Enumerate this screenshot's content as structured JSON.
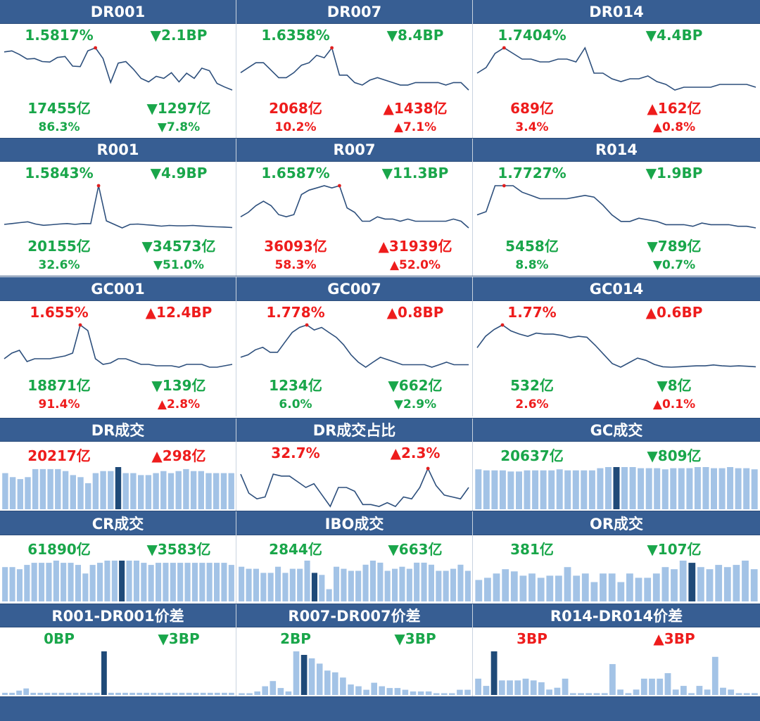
{
  "colors": {
    "header": "#375e93",
    "up": "#ee1c1c",
    "down": "#19a64a",
    "line": "#2d4f7c",
    "bar": "#a3c3e6",
    "bar_highlight": "#1f4a78",
    "dot": "#e02020"
  },
  "panels": [
    {
      "title": "DR001",
      "type": "line",
      "rate": "1.5817%",
      "rate_dir": "down",
      "rate_chg": "2.1BP",
      "vol": "17455亿",
      "vol_dir": "down",
      "vol_chg": "1297亿",
      "pct": "86.3%",
      "pct_dir": "down",
      "pct_chg": "7.8%",
      "series": [
        1.625,
        1.627,
        1.62,
        1.611,
        1.612,
        1.606,
        1.605,
        1.614,
        1.616,
        1.597,
        1.596,
        1.627,
        1.633,
        1.612,
        1.565,
        1.603,
        1.606,
        1.591,
        1.573,
        1.566,
        1.577,
        1.573,
        1.584,
        1.566,
        1.583,
        1.573,
        1.593,
        1.588,
        1.563,
        1.556,
        1.55
      ],
      "peak": 12
    },
    {
      "title": "DR007",
      "type": "line",
      "rate": "1.6358%",
      "rate_dir": "down",
      "rate_chg": "8.4BP",
      "vol": "2068亿",
      "vol_dir": "up",
      "vol_chg": "1438亿",
      "pct": "10.2%",
      "pct_dir": "up",
      "pct_chg": "7.1%",
      "series": [
        1.66,
        1.68,
        1.7,
        1.7,
        1.67,
        1.64,
        1.64,
        1.66,
        1.69,
        1.7,
        1.73,
        1.72,
        1.76,
        1.65,
        1.65,
        1.62,
        1.61,
        1.63,
        1.64,
        1.63,
        1.62,
        1.61,
        1.61,
        1.62,
        1.62,
        1.62,
        1.62,
        1.61,
        1.62,
        1.62,
        1.59
      ],
      "peak": 12
    },
    {
      "title": "DR014",
      "type": "line",
      "rate": "1.7404%",
      "rate_dir": "down",
      "rate_chg": "4.4BP",
      "vol": "689亿",
      "vol_dir": "up",
      "vol_chg": "162亿",
      "pct": "3.4%",
      "pct_dir": "up",
      "pct_chg": "0.8%",
      "series": [
        1.8,
        1.82,
        1.87,
        1.89,
        1.87,
        1.85,
        1.85,
        1.84,
        1.84,
        1.85,
        1.85,
        1.84,
        1.89,
        1.8,
        1.8,
        1.78,
        1.77,
        1.78,
        1.78,
        1.79,
        1.77,
        1.76,
        1.74,
        1.75,
        1.75,
        1.75,
        1.75,
        1.76,
        1.76,
        1.76,
        1.76,
        1.75
      ],
      "peak": 3
    },
    {
      "title": "R001",
      "type": "line",
      "rate": "1.5843%",
      "rate_dir": "down",
      "rate_chg": "4.9BP",
      "vol": "20155亿",
      "vol_dir": "down",
      "vol_chg": "34573亿",
      "pct": "32.6%",
      "pct_dir": "down",
      "pct_chg": "51.0%",
      "series": [
        1.58,
        1.585,
        1.59,
        1.595,
        1.582,
        1.575,
        1.578,
        1.582,
        1.585,
        1.58,
        1.585,
        1.584,
        1.8,
        1.6,
        1.58,
        1.56,
        1.58,
        1.582,
        1.578,
        1.575,
        1.57,
        1.574,
        1.572,
        1.572,
        1.574,
        1.571,
        1.568,
        1.566,
        1.565,
        1.562
      ],
      "peak": 12
    },
    {
      "title": "R007",
      "type": "line",
      "rate": "1.6587%",
      "rate_dir": "down",
      "rate_chg": "11.3BP",
      "vol": "36093亿",
      "vol_dir": "up",
      "vol_chg": "31939亿",
      "pct": "58.3%",
      "pct_dir": "up",
      "pct_chg": "52.0%",
      "series": [
        1.66,
        1.68,
        1.71,
        1.73,
        1.71,
        1.67,
        1.66,
        1.67,
        1.76,
        1.78,
        1.79,
        1.8,
        1.79,
        1.8,
        1.7,
        1.68,
        1.64,
        1.64,
        1.66,
        1.65,
        1.65,
        1.64,
        1.65,
        1.64,
        1.64,
        1.64,
        1.64,
        1.64,
        1.65,
        1.64,
        1.61
      ],
      "peak": 13
    },
    {
      "title": "R014",
      "type": "line",
      "rate": "1.7727%",
      "rate_dir": "down",
      "rate_chg": "1.9BP",
      "vol": "5458亿",
      "vol_dir": "down",
      "vol_chg": "789亿",
      "pct": "8.8%",
      "pct_dir": "down",
      "pct_chg": "0.7%",
      "series": [
        1.8,
        1.81,
        1.89,
        1.89,
        1.89,
        1.87,
        1.86,
        1.85,
        1.85,
        1.85,
        1.85,
        1.855,
        1.86,
        1.855,
        1.83,
        1.8,
        1.78,
        1.78,
        1.79,
        1.785,
        1.78,
        1.77,
        1.77,
        1.77,
        1.765,
        1.775,
        1.77,
        1.77,
        1.77,
        1.765,
        1.765,
        1.76
      ],
      "peak": 3
    },
    {
      "title": "GC001",
      "type": "line",
      "rate": "1.655%",
      "rate_dir": "up",
      "rate_chg": "12.4BP",
      "vol": "18871亿",
      "vol_dir": "down",
      "vol_chg": "139亿",
      "pct": "91.4%",
      "pct_dir": "up",
      "pct_chg": "2.8%",
      "series": [
        1.5,
        1.52,
        1.53,
        1.49,
        1.5,
        1.5,
        1.5,
        1.505,
        1.51,
        1.52,
        1.62,
        1.6,
        1.5,
        1.48,
        1.485,
        1.5,
        1.5,
        1.49,
        1.48,
        1.48,
        1.475,
        1.475,
        1.475,
        1.47,
        1.48,
        1.48,
        1.48,
        1.47,
        1.47,
        1.475,
        1.48
      ],
      "peak": 10
    },
    {
      "title": "GC007",
      "type": "line",
      "rate": "1.778%",
      "rate_dir": "up",
      "rate_chg": "0.8BP",
      "vol": "1234亿",
      "vol_dir": "down",
      "vol_chg": "662亿",
      "pct": "6.0%",
      "pct_dir": "down",
      "pct_chg": "2.9%",
      "series": [
        1.64,
        1.65,
        1.67,
        1.68,
        1.66,
        1.66,
        1.7,
        1.74,
        1.76,
        1.77,
        1.75,
        1.76,
        1.74,
        1.72,
        1.69,
        1.65,
        1.62,
        1.6,
        1.62,
        1.64,
        1.63,
        1.62,
        1.61,
        1.61,
        1.61,
        1.61,
        1.6,
        1.61,
        1.62,
        1.61,
        1.61,
        1.61
      ],
      "peak": 9
    },
    {
      "title": "GC014",
      "type": "line",
      "rate": "1.77%",
      "rate_dir": "up",
      "rate_chg": "0.6BP",
      "vol": "532亿",
      "vol_dir": "down",
      "vol_chg": "8亿",
      "pct": "2.6%",
      "pct_dir": "up",
      "pct_chg": "0.1%",
      "series": [
        1.72,
        1.745,
        1.76,
        1.77,
        1.757,
        1.75,
        1.745,
        1.752,
        1.75,
        1.75,
        1.747,
        1.742,
        1.745,
        1.743,
        1.725,
        1.705,
        1.685,
        1.677,
        1.687,
        1.697,
        1.692,
        1.683,
        1.678,
        1.677,
        1.678,
        1.679,
        1.68,
        1.68,
        1.682,
        1.68,
        1.679,
        1.68,
        1.679,
        1.678
      ],
      "peak": 3
    },
    {
      "title": "DR成交",
      "type": "bar",
      "rate": "20217亿",
      "rate_dir": "up",
      "rate_chg": "298亿",
      "series": [
        18,
        16,
        15,
        16,
        20,
        20,
        20,
        20,
        19,
        17,
        16,
        13,
        18,
        19,
        19,
        21,
        18,
        18,
        17,
        17,
        18,
        19,
        18,
        19,
        20,
        19,
        19,
        18,
        18,
        18,
        18
      ],
      "peak": 15
    },
    {
      "title": "DR成交占比",
      "type": "line",
      "rate": "32.7%",
      "rate_dir": "up",
      "rate_chg": "2.3%",
      "series": [
        25,
        15,
        12,
        13,
        25,
        24,
        24,
        21,
        18,
        20,
        14,
        8,
        18,
        18,
        16,
        9,
        9,
        8,
        10,
        8,
        13,
        12,
        18,
        28,
        19,
        14,
        13,
        12,
        18
      ],
      "peak": 23
    },
    {
      "title": "GC成交",
      "type": "bar",
      "rate": "20637亿",
      "rate_dir": "down",
      "rate_chg": "809亿",
      "series": [
        18,
        17.5,
        17.5,
        17.5,
        17,
        17,
        17.5,
        17.5,
        17.5,
        17.5,
        18,
        17.5,
        17.5,
        17.5,
        17.5,
        18.5,
        19,
        19,
        19,
        19,
        18.5,
        18.5,
        18.5,
        18,
        18.5,
        18.5,
        18.5,
        19,
        19,
        18.5,
        18.5,
        19,
        18.5,
        18.5,
        18
      ],
      "peak": 17
    },
    {
      "title": "CR成交",
      "type": "bar",
      "rate": "61890亿",
      "rate_dir": "down",
      "rate_chg": "3583亿",
      "series": [
        16,
        16,
        15,
        17,
        18,
        18,
        18,
        19,
        18,
        18,
        17,
        13,
        17,
        18,
        19,
        19,
        19,
        19,
        19,
        18,
        17,
        18,
        18,
        18,
        18,
        18,
        18,
        18,
        18,
        18,
        18,
        17
      ],
      "peak": 16
    },
    {
      "title": "IBO成交",
      "type": "bar",
      "rate": "2844亿",
      "rate_dir": "down",
      "rate_chg": "663亿",
      "series": [
        17,
        16,
        16,
        14,
        14,
        17,
        14,
        16,
        16,
        20,
        14,
        13,
        6,
        17,
        16,
        15,
        15,
        18,
        20,
        19,
        15,
        16,
        17,
        16,
        19,
        19,
        18,
        15,
        15,
        16,
        18,
        15
      ],
      "peak": 10
    },
    {
      "title": "OR成交",
      "type": "bar",
      "rate": "381亿",
      "rate_dir": "down",
      "rate_chg": "107亿",
      "series": [
        10,
        11,
        13,
        15,
        14,
        12,
        13,
        11,
        12,
        12,
        16,
        12,
        13,
        9,
        13,
        13,
        9,
        13,
        11,
        11,
        13,
        16,
        15,
        19,
        18,
        16,
        15,
        17,
        16,
        17,
        19,
        15
      ],
      "peak": 24
    },
    {
      "title": "R001-DR001价差",
      "type": "bar",
      "rate": "0BP",
      "rate_dir": "neutral",
      "rate_chg": "3BP",
      "rate_chg_dir": "down",
      "series": [
        1,
        1,
        2,
        3,
        1,
        1,
        1,
        1,
        1,
        1,
        1,
        1,
        1,
        1,
        20,
        1,
        1,
        1,
        1,
        1,
        1,
        1,
        1,
        1,
        1,
        1,
        1,
        1,
        1,
        1,
        1,
        1,
        1
      ],
      "peak": 14
    },
    {
      "title": "R007-DR007价差",
      "type": "bar",
      "rate": "2BP",
      "rate_dir": "neutral",
      "rate_chg": "3BP",
      "rate_chg_dir": "down",
      "series": [
        1,
        1,
        2,
        5,
        8,
        4,
        2,
        25,
        23,
        21,
        18,
        14,
        13,
        10,
        6,
        5,
        3,
        7,
        5,
        4,
        4,
        3,
        2,
        2,
        2,
        1,
        1,
        1,
        3,
        3
      ],
      "peak": 8
    },
    {
      "title": "R014-DR014价差",
      "type": "bar",
      "rate": "3BP",
      "rate_dir": "up",
      "rate_chg": "3BP",
      "rate_chg_dir": "up",
      "series": [
        9,
        5,
        24,
        8,
        8,
        8,
        9,
        8,
        7,
        3,
        4,
        9,
        1,
        1,
        1,
        1,
        1,
        17,
        3,
        1,
        3,
        9,
        9,
        9,
        12,
        3,
        5,
        1,
        5,
        3,
        21,
        4,
        3,
        1,
        1,
        1
      ],
      "peak": 2
    }
  ]
}
